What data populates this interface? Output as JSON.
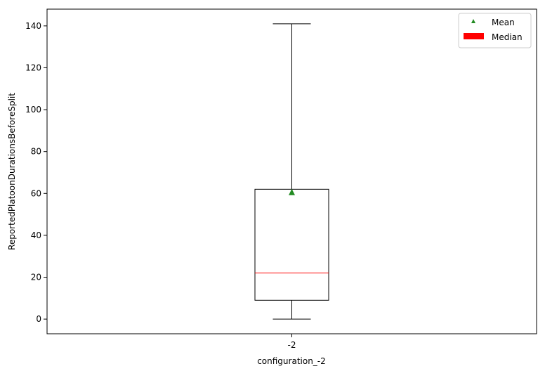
{
  "chart_data": {
    "type": "boxplot",
    "xlabel": "configuration_-2",
    "ylabel": "ReportedPlatoonDurationsBeforeSplit",
    "categories": [
      "-2"
    ],
    "ylim": [
      -7,
      148
    ],
    "yticks": [
      0,
      20,
      40,
      60,
      80,
      100,
      120,
      140
    ],
    "grid": false,
    "legend_position": "top-right",
    "legend": [
      {
        "label": "Mean",
        "marker": "triangle",
        "color": "#228b22"
      },
      {
        "label": "Median",
        "marker": "patch",
        "color": "#ff0000"
      }
    ],
    "boxes": [
      {
        "category": "-2",
        "whisker_low": 0,
        "q1": 9,
        "median": 22,
        "q3": 62,
        "whisker_high": 141,
        "mean": 60.5
      }
    ],
    "colors": {
      "box": "#000000",
      "median": "#ff0000",
      "mean": "#228b22"
    }
  }
}
